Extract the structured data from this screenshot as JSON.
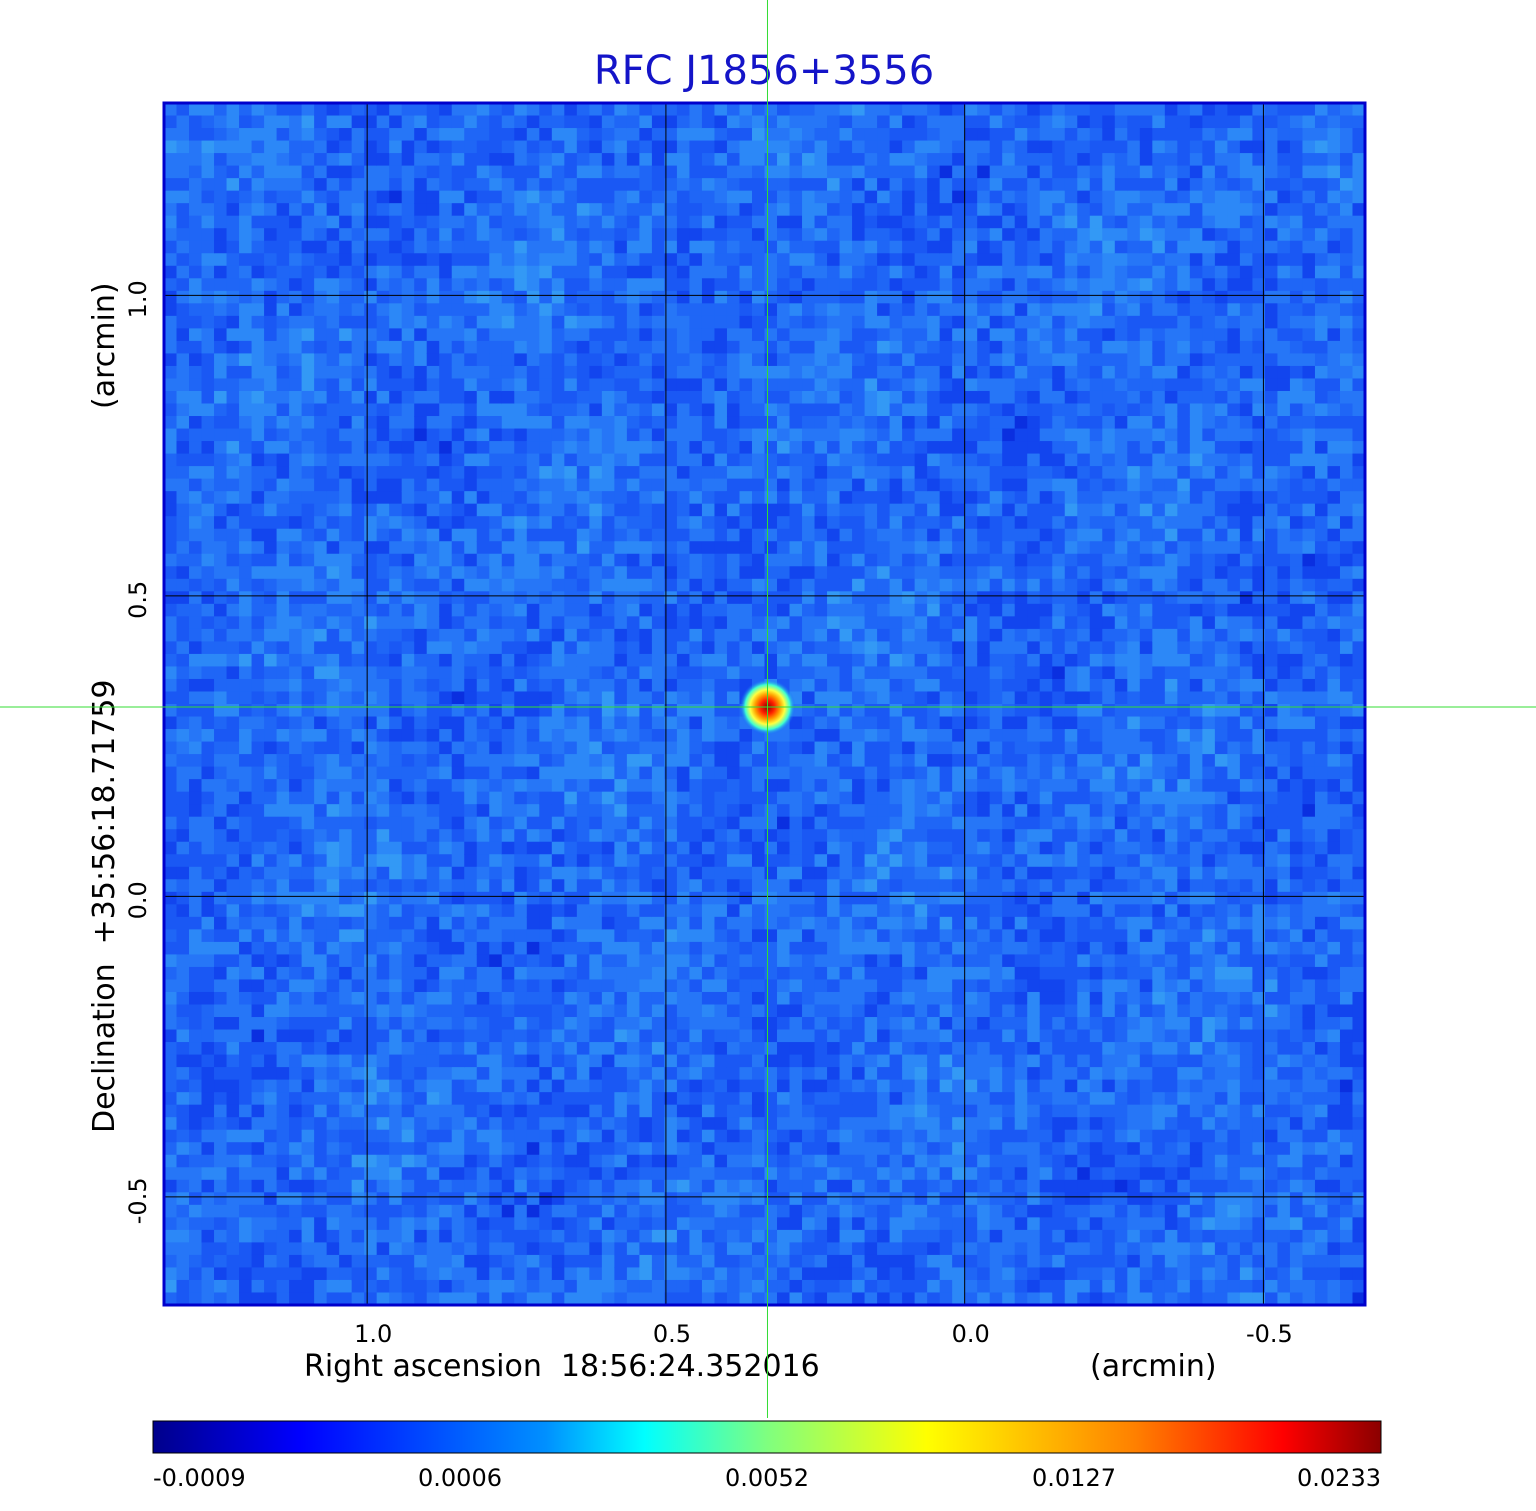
{
  "chart_data": {
    "type": "heatmap",
    "title": "RFC J1856+3556",
    "xlabel": "Right ascension  18:56:24.352016",
    "xunit": "(arcmin)",
    "ylabel": "Declination  +35:56:18.71759",
    "yunit": "(arcmin)",
    "xlim": [
      1.34,
      -0.67
    ],
    "ylim": [
      -0.68,
      1.32
    ],
    "x_ticks": [
      1.0,
      0.5,
      0.0,
      -0.5
    ],
    "x_tick_labels": [
      "1.0",
      "0.5",
      "0.0",
      "-0.5"
    ],
    "y_ticks": [
      -0.5,
      0.0,
      0.5,
      1.0
    ],
    "y_tick_labels": [
      "-0.5",
      "0.0",
      "0.5",
      "1.0"
    ],
    "grid": true,
    "crosshair": {
      "x": 0.33,
      "y": 0.315,
      "color": "#33dd33"
    },
    "source": {
      "x": 0.33,
      "y": 0.315,
      "peak": 0.0233
    },
    "colorbar": {
      "tick_labels": [
        "-0.0009",
        "0.0006",
        "0.0052",
        "0.0127",
        "0.0233"
      ],
      "tick_fractions": [
        0.0,
        0.25,
        0.5,
        0.75,
        1.0
      ],
      "colormap": "jet"
    },
    "colors": {
      "frame": "#0000cc",
      "title": "#1414c8",
      "grid": "#000000"
    }
  }
}
